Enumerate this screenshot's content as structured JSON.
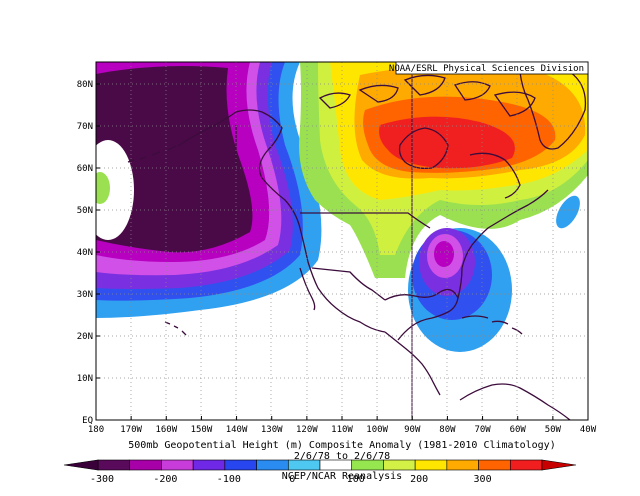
{
  "credit": "NOAA/ESRL Physical Sciences Division",
  "caption": {
    "line1": "500mb Geopotential Height (m) Composite Anomaly (1981-2010 Climatology)",
    "line2": "2/6/78  to 2/6/78",
    "line3": "NCEP/NCAR Reanalysis"
  },
  "axes": {
    "lat_labels": [
      "80N",
      "70N",
      "60N",
      "50N",
      "40N",
      "30N",
      "20N",
      "10N",
      "EQ"
    ],
    "lon_labels": [
      "180",
      "170W",
      "160W",
      "150W",
      "140W",
      "130W",
      "120W",
      "110W",
      "100W",
      "90W",
      "80W",
      "70W",
      "60W",
      "50W",
      "40W"
    ]
  },
  "colorbar": {
    "labels": [
      "-300",
      "-200",
      "-100",
      "0",
      "100",
      "200",
      "300"
    ],
    "colors": [
      "#5a0a5a",
      "#a800a8",
      "#c83cdc",
      "#6e28e6",
      "#2846f0",
      "#2a8cf0",
      "#4ec8f0",
      "#ffffff",
      "#96e650",
      "#d2f046",
      "#ffe600",
      "#ffaa00",
      "#ff6400",
      "#f01e1e"
    ]
  },
  "colors": {
    "deep_negative": "#4a0a48",
    "magenta": "#b800c0",
    "violet": "#d050e8",
    "purple": "#7a30e0",
    "blue": "#3050f0",
    "light_blue": "#30a0f0",
    "green": "#9ae050",
    "yellow_green": "#d0f040",
    "yellow": "#ffe600",
    "orange": "#ffaa00",
    "dark_orange": "#ff6400",
    "red": "#f02020"
  }
}
